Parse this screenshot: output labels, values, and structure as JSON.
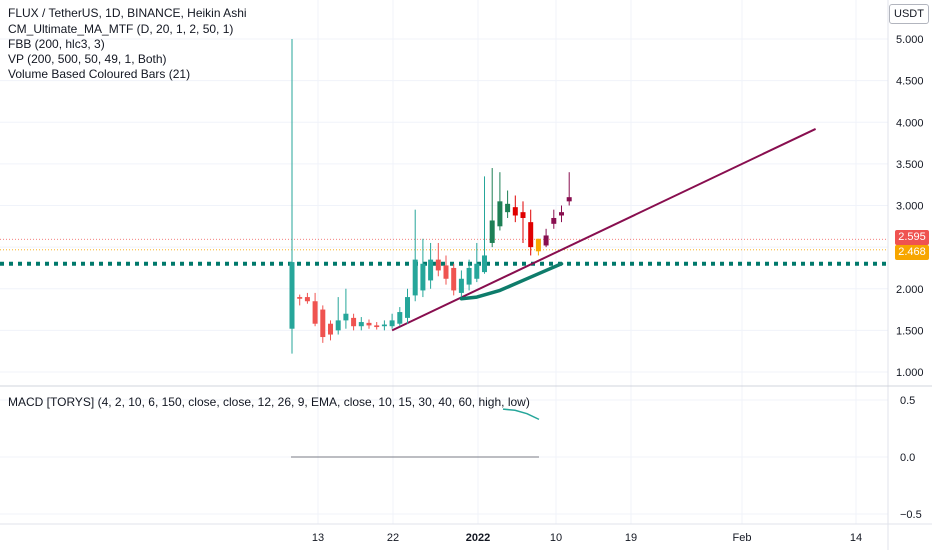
{
  "header": {
    "symbol_line": "FLUX / TetherUS, 1D, BINANCE, Heikin Ashi",
    "indicators": [
      "CM_Ultimate_MA_MTF (D, 20, 1, 2, 50, 1)",
      "FBB (200, hlc3, 3)",
      "VP (200, 500, 50, 49, 1, Both)",
      "Volume Based Coloured Bars (21)"
    ],
    "currency": "USDT"
  },
  "macd_label": "MACD [TORYS] (4, 2, 10, 6, 150, close, close, 12, 26, 9, EMA, close, 10, 15, 30, 40, 60, high, low)",
  "price_tags": [
    {
      "label": "2.595",
      "value": 2.595,
      "color": "#ef5350"
    },
    {
      "label": "2.468",
      "value": 2.468,
      "color": "#f7a600"
    }
  ],
  "colors": {
    "up": "#26a69a",
    "down": "#ef5350",
    "dark_up": "#1e7f55",
    "dark_down": "#e00000",
    "maroon": "#880e4f",
    "orange": "#f7a600",
    "teal_line": "#0e7c6b",
    "dotted": "#00796b",
    "grid": "#f0f3fa"
  },
  "chart_data": [
    {
      "type": "candlestick",
      "title": "FLUX / TetherUS, 1D, BINANCE, Heikin Ashi",
      "x_tick_labels": [
        "13",
        "22",
        "2022",
        "10",
        "19",
        "Feb",
        "14"
      ],
      "y_tick_labels": [
        "5.000",
        "4.500",
        "4.000",
        "3.500",
        "3.000",
        "2.500",
        "2.000",
        "1.500",
        "1.000"
      ],
      "ylim": [
        0.9,
        5.2
      ],
      "grid": true,
      "candles": [
        {
          "o": 1.52,
          "h": 5.0,
          "l": 1.22,
          "c": 2.32
        },
        {
          "o": 1.9,
          "h": 1.93,
          "l": 1.8,
          "c": 1.88
        },
        {
          "o": 1.9,
          "h": 1.95,
          "l": 1.82,
          "c": 1.85
        },
        {
          "o": 1.85,
          "h": 1.95,
          "l": 1.55,
          "c": 1.58
        },
        {
          "o": 1.75,
          "h": 1.8,
          "l": 1.35,
          "c": 1.42
        },
        {
          "o": 1.58,
          "h": 1.62,
          "l": 1.38,
          "c": 1.45
        },
        {
          "o": 1.5,
          "h": 1.9,
          "l": 1.45,
          "c": 1.62
        },
        {
          "o": 1.62,
          "h": 2.0,
          "l": 1.52,
          "c": 1.7
        },
        {
          "o": 1.65,
          "h": 1.7,
          "l": 1.5,
          "c": 1.55
        },
        {
          "o": 1.55,
          "h": 1.66,
          "l": 1.5,
          "c": 1.6
        },
        {
          "o": 1.59,
          "h": 1.63,
          "l": 1.52,
          "c": 1.56
        },
        {
          "o": 1.56,
          "h": 1.6,
          "l": 1.51,
          "c": 1.54
        },
        {
          "o": 1.55,
          "h": 1.62,
          "l": 1.5,
          "c": 1.57
        },
        {
          "o": 1.55,
          "h": 1.7,
          "l": 1.52,
          "c": 1.62
        },
        {
          "o": 1.58,
          "h": 1.78,
          "l": 1.55,
          "c": 1.72
        },
        {
          "o": 1.65,
          "h": 2.0,
          "l": 1.58,
          "c": 1.9
        },
        {
          "o": 1.92,
          "h": 2.95,
          "l": 1.85,
          "c": 2.35
        },
        {
          "o": 1.98,
          "h": 2.6,
          "l": 1.9,
          "c": 2.3
        },
        {
          "o": 2.1,
          "h": 2.55,
          "l": 2.0,
          "c": 2.35
        },
        {
          "o": 2.35,
          "h": 2.55,
          "l": 2.15,
          "c": 2.22
        },
        {
          "o": 2.28,
          "h": 2.4,
          "l": 2.05,
          "c": 2.12
        },
        {
          "o": 2.25,
          "h": 2.3,
          "l": 1.92,
          "c": 1.98
        },
        {
          "o": 1.95,
          "h": 2.22,
          "l": 1.9,
          "c": 2.12
        },
        {
          "o": 2.05,
          "h": 2.35,
          "l": 1.98,
          "c": 2.25
        },
        {
          "o": 2.12,
          "h": 2.55,
          "l": 2.08,
          "c": 2.3
        },
        {
          "o": 2.2,
          "h": 3.35,
          "l": 2.18,
          "c": 2.4
        },
        {
          "o": 2.55,
          "h": 3.45,
          "l": 2.5,
          "c": 2.82
        },
        {
          "o": 2.75,
          "h": 3.4,
          "l": 2.7,
          "c": 3.05
        },
        {
          "o": 2.92,
          "h": 3.18,
          "l": 2.85,
          "c": 3.02
        },
        {
          "o": 2.98,
          "h": 3.12,
          "l": 2.8,
          "c": 2.88
        },
        {
          "o": 2.92,
          "h": 3.05,
          "l": 2.55,
          "c": 2.85
        },
        {
          "o": 2.8,
          "h": 2.95,
          "l": 2.4,
          "c": 2.5
        },
        {
          "o": 2.45,
          "h": 2.6,
          "l": 2.4,
          "c": 2.6
        },
        {
          "o": 2.52,
          "h": 2.72,
          "l": 2.5,
          "c": 2.64
        },
        {
          "o": 2.85,
          "h": 2.95,
          "l": 2.72,
          "c": 2.78
        },
        {
          "o": 2.88,
          "h": 3.0,
          "l": 2.8,
          "c": 2.92
        },
        {
          "o": 3.05,
          "h": 3.4,
          "l": 3.0,
          "c": 3.1
        }
      ],
      "annotations": {
        "horizontal_dotted_level": 2.3,
        "trendline": {
          "from": {
            "bar": 13,
            "price": 1.5
          },
          "to": {
            "bar": 68,
            "price": 3.92
          }
        },
        "ma_curve": [
          {
            "bar": 22,
            "price": 1.88
          },
          {
            "bar": 24,
            "price": 1.9
          },
          {
            "bar": 27,
            "price": 1.98
          },
          {
            "bar": 30,
            "price": 2.1
          },
          {
            "bar": 33,
            "price": 2.22
          },
          {
            "bar": 35,
            "price": 2.3
          }
        ]
      }
    },
    {
      "type": "line",
      "title": "MACD [TORYS] (4, 2, 10, 6, 150, close, close, 12, 26, 9, EMA, close, 10, 15, 30, 40, 60, high, low)",
      "y_tick_labels": [
        "0.5",
        "0.0",
        "−0.5"
      ],
      "ylim": [
        -0.62,
        0.55
      ],
      "series": [
        {
          "values": [
            0.42,
            0.41,
            0.38,
            0.33
          ]
        }
      ],
      "baseline": {
        "value": 0.0
      }
    }
  ]
}
